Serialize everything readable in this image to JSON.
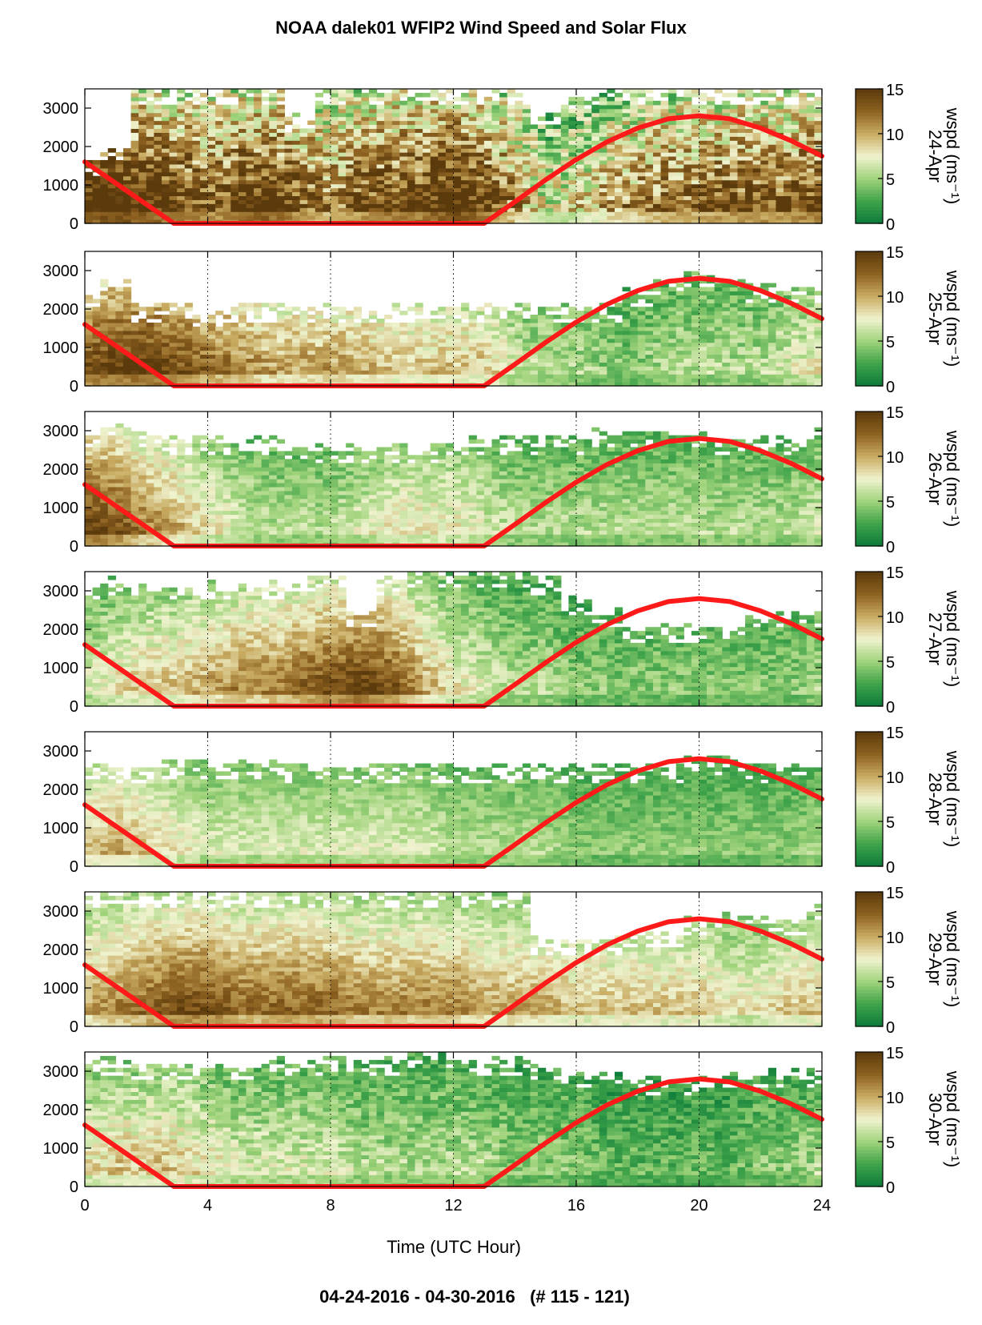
{
  "title": "NOAA dalek01 WFIP2 Wind Speed and Solar Flux",
  "footer": "04-24-2016 - 04-30-2016   (# 115 - 121)",
  "colors": {
    "red_curve": "#ff1a1a",
    "ramp": [
      "#0b7a3a",
      "#3fa34a",
      "#9fd37a",
      "#f0f3cf",
      "#c9ac62",
      "#8e6221",
      "#5b3a0c"
    ]
  },
  "chart_data": {
    "type": "heatmap",
    "xlabel": "Time (UTC Hour)",
    "xlim": [
      0,
      24
    ],
    "xticks": [
      "0",
      "4",
      "8",
      "12",
      "16",
      "20",
      "24"
    ],
    "ylim": [
      0,
      3500
    ],
    "yticks": [
      "0",
      "1000",
      "2000",
      "3000"
    ],
    "colorbar": {
      "label": "wspd (ms⁻¹)",
      "range": [
        0,
        15
      ],
      "ticks": [
        "0",
        "5",
        "10",
        "15"
      ]
    },
    "gridlines_x": [
      4,
      8,
      12,
      16,
      20
    ],
    "solar_flux_curve": [
      [
        0,
        1600
      ],
      [
        2.9,
        0
      ],
      [
        13,
        0
      ],
      [
        14,
        560
      ],
      [
        15,
        1130
      ],
      [
        16,
        1660
      ],
      [
        17,
        2120
      ],
      [
        18,
        2480
      ],
      [
        19,
        2720
      ],
      [
        20,
        2800
      ],
      [
        21,
        2720
      ],
      [
        22,
        2480
      ],
      [
        23,
        2150
      ],
      [
        24,
        1750
      ]
    ],
    "panels": [
      {
        "day": "24-Apr",
        "top_cut": [
          0.45,
          0.55,
          1,
          1,
          1,
          1,
          1,
          0.8,
          1,
          1,
          1,
          1,
          1,
          1,
          1,
          0.85,
          0.95,
          1,
          1,
          1,
          1,
          1,
          1,
          1,
          1,
          0.9
        ],
        "profile": [
          14,
          15,
          14,
          13,
          12,
          13,
          14,
          12,
          10,
          12,
          13,
          13,
          15,
          13,
          10,
          6,
          7,
          9,
          10,
          11,
          11,
          12,
          12,
          12,
          13
        ],
        "noise": 4.0
      },
      {
        "day": "25-Apr",
        "top_cut": [
          0.7,
          0.8,
          0.6,
          0.6,
          0.55,
          0.6,
          0.6,
          0.6,
          0.6,
          0.6,
          0.6,
          0.6,
          0.6,
          0.6,
          0.6,
          0.6,
          0.6,
          0.6,
          0.7,
          0.8,
          0.85,
          0.8,
          0.75,
          0.75,
          0.75,
          0.8
        ],
        "profile": [
          12,
          13,
          13,
          12,
          11,
          10,
          9,
          9,
          9,
          9,
          8,
          8,
          8,
          8,
          6,
          5,
          5,
          4,
          4,
          5,
          5,
          5,
          5,
          6,
          7
        ],
        "noise": 1.8
      },
      {
        "day": "26-Apr",
        "top_cut": [
          0.85,
          0.9,
          0.85,
          0.8,
          0.8,
          0.8,
          0.8,
          0.75,
          0.75,
          0.75,
          0.75,
          0.75,
          0.75,
          0.8,
          0.8,
          0.8,
          0.8,
          0.85,
          0.85,
          0.85,
          0.85,
          0.8,
          0.8,
          0.8,
          0.85,
          0.9
        ],
        "profile": [
          13,
          12,
          10,
          9,
          7,
          6,
          5,
          5,
          5,
          6,
          7,
          7,
          7,
          6,
          5,
          5,
          5,
          5,
          5,
          5,
          5,
          5,
          5,
          5,
          6
        ],
        "noise": 1.5
      },
      {
        "day": "27-Apr",
        "top_cut": [
          0.9,
          0.95,
          0.9,
          0.9,
          0.9,
          0.9,
          0.9,
          0.95,
          1,
          0.7,
          0.95,
          1,
          1,
          1,
          1,
          0.95,
          0.8,
          0.7,
          0.6,
          0.6,
          0.6,
          0.6,
          0.65,
          0.7,
          0.7,
          0.75
        ],
        "profile": [
          6,
          7,
          8,
          8,
          9,
          10,
          10,
          11,
          12,
          13,
          12,
          9,
          7,
          6,
          5,
          5,
          4,
          4,
          4,
          4,
          4,
          4,
          4,
          4,
          5
        ],
        "noise": 1.6
      },
      {
        "day": "28-Apr",
        "top_cut": [
          0.75,
          0.75,
          0.75,
          0.78,
          0.78,
          0.78,
          0.78,
          0.75,
          0.75,
          0.75,
          0.75,
          0.75,
          0.75,
          0.75,
          0.75,
          0.75,
          0.75,
          0.75,
          0.75,
          0.75,
          0.8,
          0.8,
          0.75,
          0.75,
          0.75,
          0.75
        ],
        "profile": [
          8,
          9,
          8,
          7,
          6,
          6,
          6,
          6,
          6,
          6,
          6,
          6,
          5,
          5,
          5,
          5,
          4,
          4,
          4,
          4,
          4,
          4,
          4,
          4,
          5
        ],
        "noise": 1.2
      },
      {
        "day": "29-Apr",
        "top_cut": [
          1,
          1,
          1,
          1,
          1,
          1,
          1,
          1,
          1,
          1,
          1,
          1,
          1,
          1,
          1,
          0.65,
          0.65,
          0.65,
          0.7,
          0.7,
          0.8,
          0.85,
          0.8,
          0.8,
          0.9,
          1
        ],
        "profile": [
          9,
          10,
          11,
          12,
          12,
          11,
          11,
          11,
          11,
          10,
          10,
          10,
          10,
          9,
          9,
          9,
          8,
          8,
          8,
          8,
          8,
          7,
          7,
          8,
          8
        ],
        "noise": 1.4
      },
      {
        "day": "30-Apr",
        "top_cut": [
          0.95,
          0.95,
          0.9,
          0.9,
          0.9,
          0.9,
          0.95,
          0.95,
          0.95,
          0.95,
          0.95,
          1,
          1,
          0.95,
          0.95,
          0.9,
          0.85,
          0.85,
          0.8,
          0.8,
          0.8,
          0.85,
          0.85,
          0.85,
          0.85,
          0.85
        ],
        "profile": [
          7,
          8,
          8,
          8,
          7,
          6,
          6,
          6,
          6,
          5,
          5,
          5,
          5,
          5,
          4,
          4,
          4,
          3,
          3,
          3,
          3,
          3,
          4,
          4,
          5
        ],
        "noise": 1.8
      }
    ]
  }
}
